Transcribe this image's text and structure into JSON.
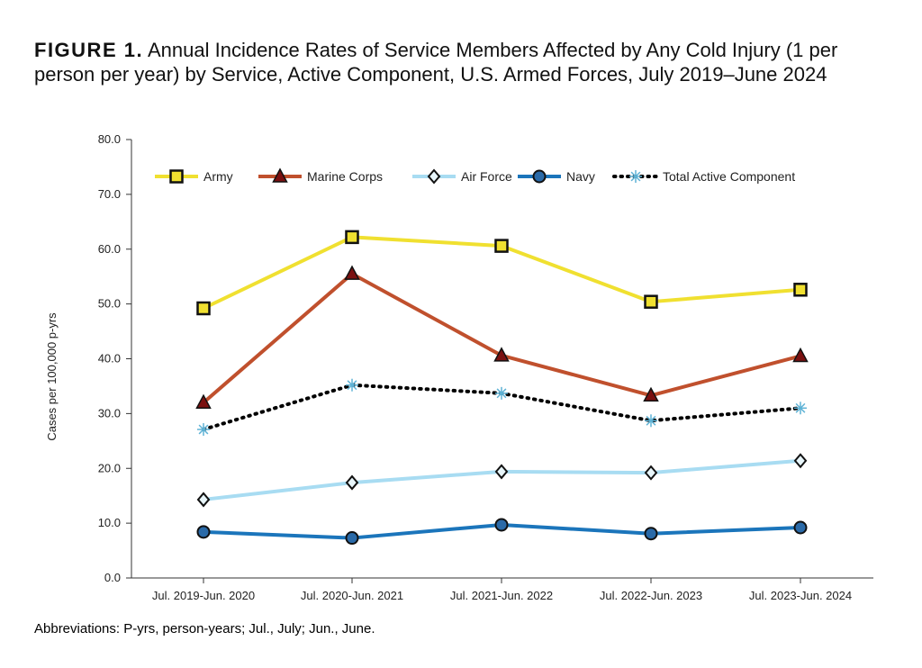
{
  "figure": {
    "label": "FIGURE 1.",
    "title": "Annual Incidence Rates of Service Members Affected by Any Cold Injury (1 per person per year) by Service, Active Component, U.S. Armed Forces, July 2019–June 2024",
    "footnote": "Abbreviations: P-yrs, person-years; Jul., July; Jun., June."
  },
  "chart_data": {
    "type": "line",
    "title": "",
    "ylabel": "Cases per 100,000 p-yrs",
    "xlabel": "",
    "ylim": [
      0,
      80
    ],
    "y_ticks": [
      "0.0",
      "10.0",
      "20.0",
      "30.0",
      "40.0",
      "50.0",
      "60.0",
      "70.0",
      "80.0"
    ],
    "categories": [
      "Jul. 2019-Jun. 2020",
      "Jul. 2020-Jun. 2021",
      "Jul. 2021-Jun. 2022",
      "Jul. 2022-Jun. 2023",
      "Jul. 2023-Jun. 2024"
    ],
    "grid": false,
    "legend_position": "top",
    "series": [
      {
        "name": "Army",
        "values": [
          49.2,
          62.2,
          60.6,
          50.4,
          52.6
        ],
        "color": "#f0e030",
        "marker": "square",
        "dash": "solid"
      },
      {
        "name": "Marine Corps",
        "values": [
          32.0,
          55.5,
          40.6,
          33.3,
          40.5
        ],
        "color": "#c0502d",
        "marker": "triangle",
        "dash": "solid"
      },
      {
        "name": "Air Force",
        "values": [
          14.3,
          17.4,
          19.4,
          19.2,
          21.4
        ],
        "color": "#a8dcf2",
        "marker": "diamond",
        "dash": "solid"
      },
      {
        "name": "Navy",
        "values": [
          8.4,
          7.3,
          9.7,
          8.1,
          9.2
        ],
        "color": "#1b75bb",
        "marker": "circle",
        "dash": "solid"
      },
      {
        "name": "Total Active Component",
        "values": [
          27.1,
          35.2,
          33.7,
          28.7,
          31.0
        ],
        "color": "#000000",
        "marker": "asterisk",
        "marker_color": "#5fb3d6",
        "dash": "dotted"
      }
    ]
  }
}
